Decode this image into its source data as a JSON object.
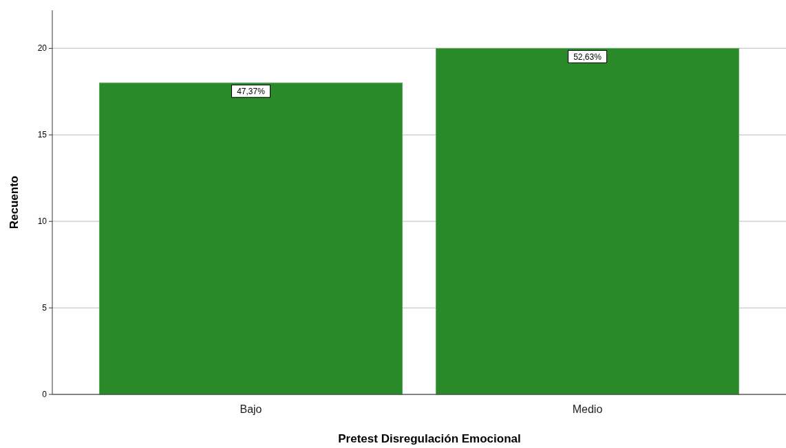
{
  "chart_data": {
    "type": "bar",
    "xlabel": "Pretest Disregulación Emocional",
    "ylabel": "Recuento",
    "categories": [
      "Bajo",
      "Medio"
    ],
    "values": [
      18,
      20
    ],
    "annotations": [
      {
        "text": "47,37%",
        "x": "Bajo",
        "y": 18
      },
      {
        "text": "52,63%",
        "x": "Medio",
        "y": 20
      }
    ],
    "color": "#2a8a2a",
    "ylim": [
      0,
      22.2
    ],
    "yticks": [
      0,
      5,
      10,
      15,
      20
    ],
    "grid": "y"
  }
}
